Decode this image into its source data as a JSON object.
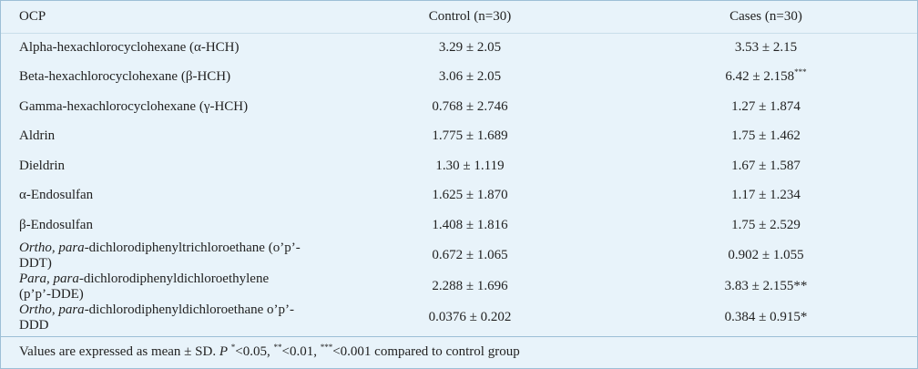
{
  "header": {
    "col1": "OCP",
    "col2": "Control (n=30)",
    "col3": "Cases (n=30)"
  },
  "rows": [
    {
      "name": "Alpha-hexachlorocyclohexane (α-HCH)",
      "control": "3.29 ± 2.05",
      "cases": "3.53 ± 2.15",
      "mark": ""
    },
    {
      "name": "Beta-hexachlorocyclohexane (β-HCH)",
      "control": "3.06 ± 2.05",
      "cases": "6.42 ± 2.158",
      "mark": "***"
    },
    {
      "name": "Gamma-hexachlorocyclohexane  (γ-HCH)",
      "control": "0.768 ± 2.746",
      "cases": "1.27 ± 1.874",
      "mark": ""
    },
    {
      "name": "Aldrin",
      "control": "1.775 ± 1.689",
      "cases": "1.75 ± 1.462",
      "mark": ""
    },
    {
      "name": "Dieldrin",
      "control": "1.30 ± 1.119",
      "cases": "1.67 ± 1.587",
      "mark": ""
    },
    {
      "name": "α-Endosulfan",
      "control": "1.625 ± 1.870",
      "cases": "1.17 ± 1.234",
      "mark": ""
    },
    {
      "name": "β-Endosulfan",
      "control": "1.408 ± 1.816",
      "cases": "1.75 ± 2.529",
      "mark": ""
    },
    {
      "name_italic": "Ortho, para",
      "name_rest": "-dichlorodiphenyltrichloroethane (o’p’-DDT)",
      "control": "0.672 ± 1.065",
      "cases": "0.902 ± 1.055",
      "mark": ""
    },
    {
      "name_italic": "Para, para",
      "name_rest": "-dichlorodiphenyldichloroethylene (p’p’-DDE)",
      "control": "2.288 ± 1.696",
      "cases": "3.83 ± 2.155**",
      "mark": ""
    },
    {
      "name_italic": "Ortho, para",
      "name_rest": "-dichlorodiphenyldichloroethane o’p’-DDD",
      "control": "0.0376 ± 0.202",
      "cases": "0.384 ± 0.915*",
      "mark": ""
    }
  ],
  "footnote": {
    "prefix": "Values are expressed as mean ± SD. ",
    "p_label": "P",
    "m1": "*",
    "t1": "<0.05, ",
    "m2": "**",
    "t2": "<0.01, ",
    "m3": "***",
    "t3": "<0.001 compared to control group"
  },
  "colors": {
    "band": "#e8f3fa",
    "white": "#ffffff",
    "border": "#9dbfd6"
  }
}
